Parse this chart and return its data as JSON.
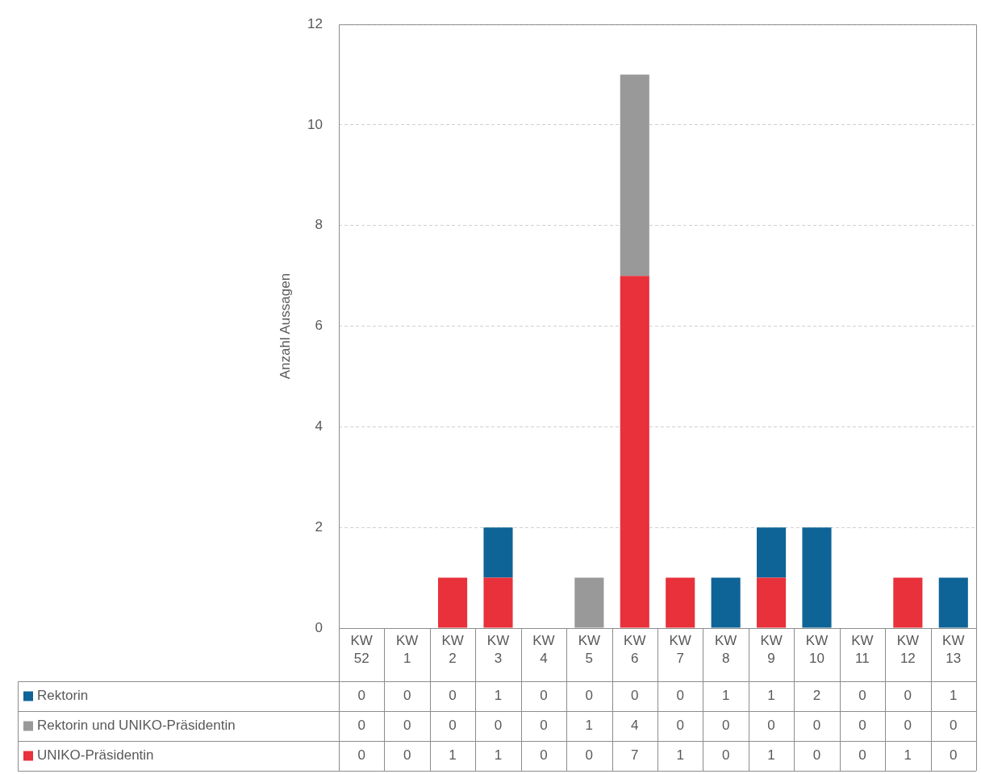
{
  "chart_data": {
    "type": "bar",
    "stacked": true,
    "ylabel": "Anzahl Aussagen",
    "categories": [
      "KW 52",
      "KW 1",
      "KW 2",
      "KW 3",
      "KW 4",
      "KW 5",
      "KW 6",
      "KW 7",
      "KW 8",
      "KW 9",
      "KW 10",
      "KW 11",
      "KW 12",
      "KW 13"
    ],
    "series": [
      {
        "name": "UNIKO-Präsidentin",
        "color": "#e8313a",
        "values": [
          0,
          0,
          1,
          1,
          0,
          0,
          7,
          1,
          0,
          1,
          0,
          0,
          1,
          0
        ]
      },
      {
        "name": "Rektorin und UNIKO-Präsidentin",
        "color": "#999999",
        "values": [
          0,
          0,
          0,
          0,
          0,
          1,
          4,
          0,
          0,
          0,
          0,
          0,
          0,
          0
        ]
      },
      {
        "name": "Rektorin",
        "color": "#0e6496",
        "values": [
          0,
          0,
          0,
          1,
          0,
          0,
          0,
          0,
          1,
          1,
          2,
          0,
          0,
          1
        ]
      }
    ],
    "ylim": [
      0,
      12
    ],
    "yticks": [
      0,
      2,
      4,
      6,
      8,
      10,
      12
    ],
    "grid": "y",
    "legend": "bottom",
    "data_labels": true
  }
}
